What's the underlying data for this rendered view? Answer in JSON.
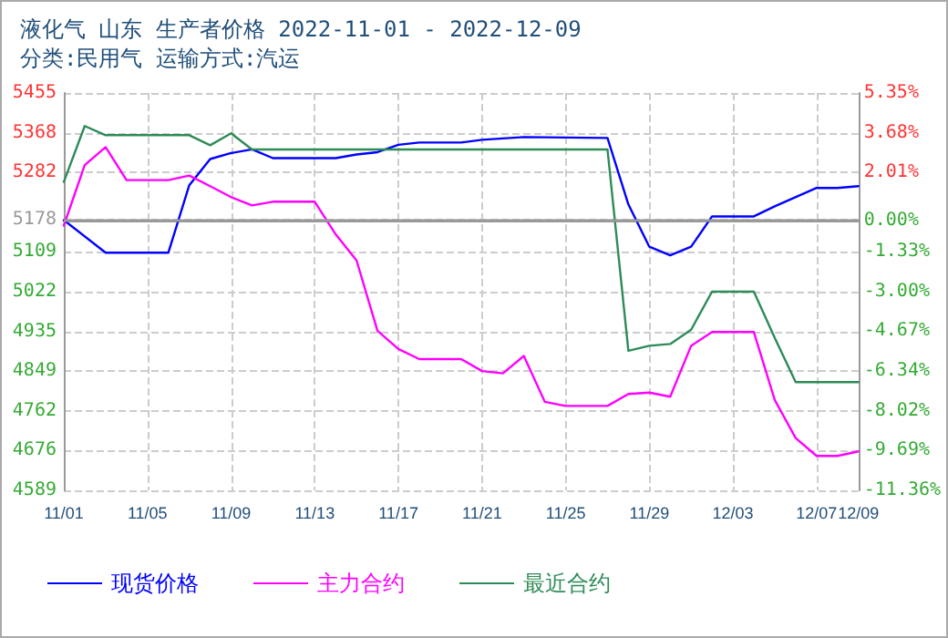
{
  "chart_data": {
    "type": "line",
    "title": "液化气 山东 生产者价格 2022-11-01 - 2022-12-09",
    "subtitle": "分类:民用气 运输方式:汽运",
    "series": [
      {
        "name": "现货价格",
        "color": "#0000ff",
        "x": [
          "2022-11-01",
          "2022-11-03",
          "2022-11-06",
          "2022-11-07",
          "2022-11-08",
          "2022-11-09",
          "2022-11-10",
          "2022-11-11",
          "2022-11-14",
          "2022-11-15",
          "2022-11-16",
          "2022-11-17",
          "2022-11-18",
          "2022-11-20",
          "2022-11-21",
          "2022-11-23",
          "2022-11-27",
          "2022-11-28",
          "2022-11-29",
          "2022-11-30",
          "2022-12-01",
          "2022-12-02",
          "2022-12-04",
          "2022-12-05",
          "2022-12-07",
          "2022-12-08",
          "2022-12-09"
        ],
        "values": [
          5178,
          5107,
          5107,
          5254,
          5311,
          5324,
          5332,
          5313,
          5313,
          5321,
          5326,
          5342,
          5347,
          5347,
          5353,
          5359,
          5357,
          5212,
          5120,
          5101,
          5120,
          5186,
          5186,
          5208,
          5248,
          5248,
          5252
        ]
      },
      {
        "name": "主力合约",
        "color": "#ff00ff",
        "x": [
          "2022-11-01",
          "2022-11-02",
          "2022-11-03",
          "2022-11-04",
          "2022-11-06",
          "2022-11-07",
          "2022-11-08",
          "2022-11-09",
          "2022-11-10",
          "2022-11-11",
          "2022-11-13",
          "2022-11-14",
          "2022-11-15",
          "2022-11-16",
          "2022-11-17",
          "2022-11-18",
          "2022-11-20",
          "2022-11-21",
          "2022-11-22",
          "2022-11-23",
          "2022-11-24",
          "2022-11-25",
          "2022-11-27",
          "2022-11-28",
          "2022-11-29",
          "2022-11-30",
          "2022-12-01",
          "2022-12-02",
          "2022-12-04",
          "2022-12-05",
          "2022-12-06",
          "2022-12-07",
          "2022-12-08",
          "2022-12-09"
        ],
        "values": [
          5166,
          5298,
          5337,
          5265,
          5265,
          5275,
          5252,
          5228,
          5210,
          5218,
          5218,
          5147,
          5090,
          4937,
          4897,
          4875,
          4875,
          4849,
          4844,
          4882,
          4782,
          4773,
          4773,
          4799,
          4802,
          4793,
          4904,
          4934,
          4934,
          4786,
          4703,
          4664,
          4664,
          4674
        ]
      },
      {
        "name": "最近合约",
        "color": "#2e8b57",
        "x": [
          "2022-11-01",
          "2022-11-02",
          "2022-11-03",
          "2022-11-07",
          "2022-11-08",
          "2022-11-09",
          "2022-11-10",
          "2022-11-27",
          "2022-11-28",
          "2022-11-29",
          "2022-11-30",
          "2022-12-01",
          "2022-12-02",
          "2022-12-04",
          "2022-12-05",
          "2022-12-06",
          "2022-12-09"
        ],
        "values": [
          5261,
          5383,
          5363,
          5363,
          5341,
          5367,
          5332,
          5332,
          4893,
          4904,
          4908,
          4939,
          5022,
          5022,
          4921,
          4825,
          4825
        ]
      }
    ],
    "xlim": [
      "2022-11-01",
      "2022-12-09"
    ],
    "xticks": [
      {
        "value": "2022-11-01",
        "label": "11/01"
      },
      {
        "value": "2022-11-05",
        "label": "11/05"
      },
      {
        "value": "2022-11-09",
        "label": "11/09"
      },
      {
        "value": "2022-11-13",
        "label": "11/13"
      },
      {
        "value": "2022-11-17",
        "label": "11/17"
      },
      {
        "value": "2022-11-21",
        "label": "11/21"
      },
      {
        "value": "2022-11-25",
        "label": "11/25"
      },
      {
        "value": "2022-11-29",
        "label": "11/29"
      },
      {
        "value": "2022-12-03",
        "label": "12/03"
      },
      {
        "value": "2022-12-07",
        "label": "12/07"
      },
      {
        "value": "2022-12-09",
        "label": "12/09"
      }
    ],
    "ylim": [
      4589,
      5455
    ],
    "yticks": [
      5455,
      5368,
      5282,
      5178,
      5109,
      5022,
      4935,
      4849,
      4762,
      4676,
      4589
    ],
    "y2lim": [
      -11.36,
      5.35
    ],
    "y2ticks": [
      {
        "value": 5.35,
        "label": "5.35%"
      },
      {
        "value": 3.68,
        "label": "3.68%"
      },
      {
        "value": 2.01,
        "label": "2.01%"
      },
      {
        "value": 0,
        "label": "0.00%"
      },
      {
        "value": -1.33,
        "label": "-1.33%"
      },
      {
        "value": -3.0,
        "label": "-3.00%"
      },
      {
        "value": -4.67,
        "label": "-4.67%"
      },
      {
        "value": -6.34,
        "label": "-6.34%"
      },
      {
        "value": -8.02,
        "label": "-8.02%"
      },
      {
        "value": -9.69,
        "label": "-9.69%"
      },
      {
        "value": -11.36,
        "label": "-11.36%"
      }
    ],
    "ref_lines": [
      {
        "axis": "y",
        "value": 5178,
        "color": "#999999"
      }
    ],
    "grid": true,
    "legend": "bottom",
    "marker": "none",
    "line_style": "solid"
  }
}
